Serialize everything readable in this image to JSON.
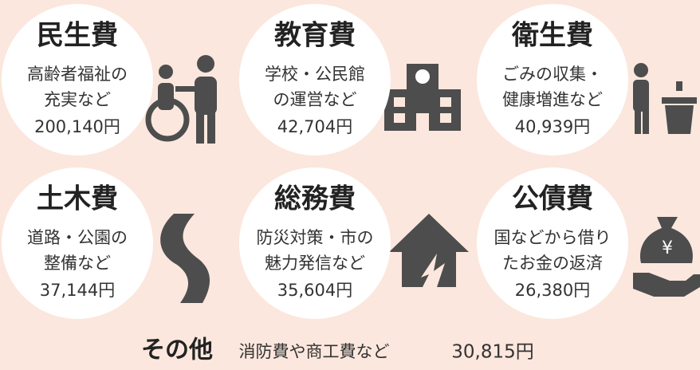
{
  "items": [
    {
      "title": "民生費",
      "lines": [
        "高齢者福祉の",
        "充実など"
      ],
      "amount": "200,140円"
    },
    {
      "title": "教育費",
      "lines": [
        "学校・公民館",
        "の運営など"
      ],
      "amount": "42,704円"
    },
    {
      "title": "衛生費",
      "lines": [
        "ごみの収集・",
        "健康増進など"
      ],
      "amount": "40,939円"
    },
    {
      "title": "土木費",
      "lines": [
        "道路・公園の",
        "整備など"
      ],
      "amount": "37,144円"
    },
    {
      "title": "総務費",
      "lines": [
        "防災対策・市の",
        "魅力発信など"
      ],
      "amount": "35,604円"
    },
    {
      "title": "公債費",
      "lines": [
        "国などから借り",
        "たお金の返済"
      ],
      "amount": "26,380円"
    }
  ],
  "other": {
    "title": "その他",
    "description": "消防費や商工費など",
    "amount": "30,815円"
  }
}
